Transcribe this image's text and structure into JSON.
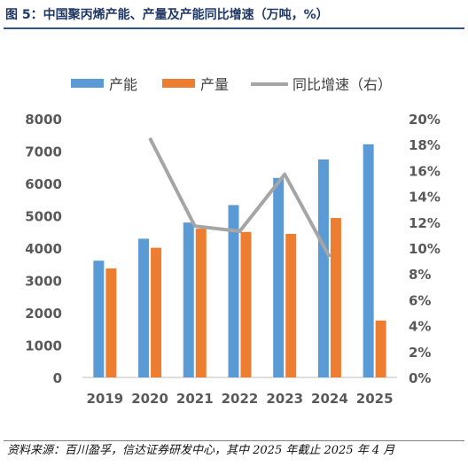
{
  "title": "图 5：中国聚丙烯产能、产量及产能同比增速（万吨，%）",
  "source": "资料来源：百川盈孚，信达证券研发中心，其中 2025 年截止 2025 年 4 月",
  "chart_data": {
    "type": "bar",
    "categories": [
      "2019",
      "2020",
      "2021",
      "2022",
      "2023",
      "2024",
      "2025"
    ],
    "series": [
      {
        "name": "产能",
        "type": "bar",
        "axis": "left",
        "color": "#5b9bd5",
        "values": [
          3610,
          4290,
          4790,
          5330,
          6170,
          6740,
          7210
        ]
      },
      {
        "name": "产量",
        "type": "bar",
        "axis": "left",
        "color": "#ed7d31",
        "values": [
          3370,
          4010,
          4600,
          4500,
          4440,
          4930,
          1760
        ]
      },
      {
        "name": "同比增速（右）",
        "type": "line",
        "axis": "right",
        "color": "#a5a5a5",
        "values": [
          null,
          18.5,
          11.7,
          11.3,
          15.7,
          9.3,
          null
        ]
      }
    ],
    "ylim_left": [
      0,
      8000
    ],
    "yticks_left": [
      "0",
      "1000",
      "2000",
      "3000",
      "4000",
      "5000",
      "6000",
      "7000",
      "8000"
    ],
    "ylim_right": [
      0,
      20
    ],
    "yticks_right": [
      "0%",
      "2%",
      "4%",
      "6%",
      "8%",
      "10%",
      "12%",
      "14%",
      "16%",
      "18%",
      "20%"
    ],
    "legend_position": "top",
    "grid": false
  }
}
